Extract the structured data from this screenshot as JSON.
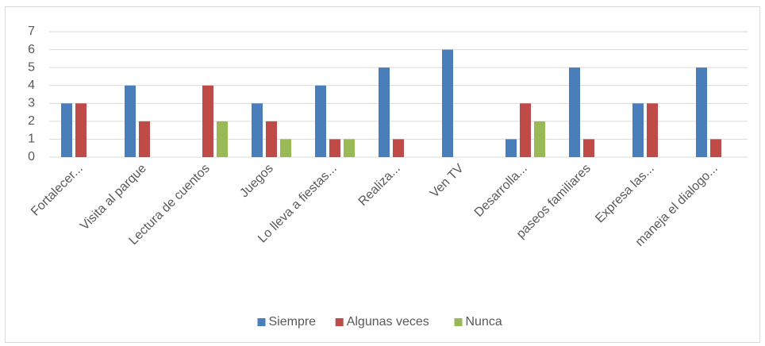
{
  "chart_data": {
    "type": "bar",
    "categories": [
      "Fortalecer...",
      "Visita al parque",
      "Lectura de cuentos",
      "Juegos",
      "Lo lleva a fiestas...",
      "Realiza...",
      "Ven TV",
      "Desarrolla...",
      "paseos familiares",
      "Expresa las...",
      "maneja el dialogo..."
    ],
    "series": [
      {
        "name": "Siempre",
        "color": "#4a7ebb",
        "values": [
          3,
          4,
          0,
          3,
          4,
          5,
          6,
          1,
          5,
          3,
          5
        ]
      },
      {
        "name": "Algunas veces",
        "color": "#be4b48",
        "values": [
          3,
          2,
          4,
          2,
          1,
          1,
          0,
          3,
          1,
          3,
          1
        ]
      },
      {
        "name": "Nunca",
        "color": "#98b954",
        "values": [
          0,
          0,
          2,
          1,
          1,
          0,
          0,
          2,
          0,
          0,
          0
        ]
      }
    ],
    "ylim": [
      0,
      7
    ],
    "yticks": [
      0,
      1,
      2,
      3,
      4,
      5,
      6,
      7
    ],
    "grid": true,
    "legend": "bottom"
  }
}
